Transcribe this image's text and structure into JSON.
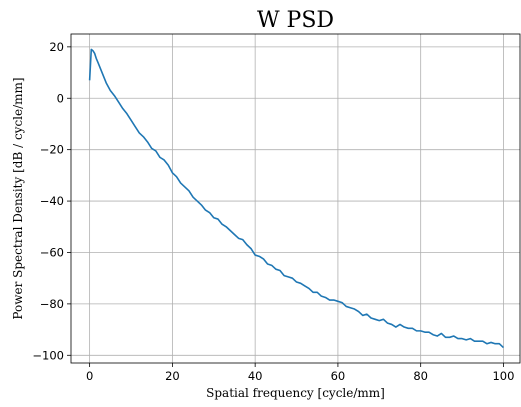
{
  "chart_data": {
    "type": "line",
    "title": "W PSD",
    "xlabel": "Spatial frequency [cycle/mm]",
    "ylabel": "Power Spectral Density [dB / cycle/mm]",
    "xlim": [
      -4.5,
      104
    ],
    "ylim": [
      -103,
      25
    ],
    "xticks": [
      0,
      20,
      40,
      60,
      80,
      100
    ],
    "yticks": [
      20,
      0,
      -20,
      -40,
      -60,
      -80,
      -100
    ],
    "xtick_labels": [
      "0",
      "20",
      "40",
      "60",
      "80",
      "100"
    ],
    "ytick_labels": [
      "20",
      "0",
      "−20",
      "−40",
      "−60",
      "−80",
      "−100"
    ],
    "grid": true,
    "series": [
      {
        "color": "#1f77b4",
        "x": [
          0,
          0.4,
          0.8,
          1.2,
          1.6,
          2.0,
          2.5,
          3,
          3.5,
          4,
          5,
          6,
          7,
          8,
          9,
          10,
          11,
          12,
          13,
          14,
          15,
          16,
          17,
          18,
          19,
          20,
          21,
          22,
          23,
          24,
          25,
          26,
          27,
          28,
          29,
          30,
          31,
          32,
          33,
          34,
          35,
          36,
          37,
          38,
          39,
          40,
          41,
          42,
          43,
          44,
          45,
          46,
          47,
          48,
          49,
          50,
          51,
          52,
          53,
          54,
          55,
          56,
          57,
          58,
          59,
          60,
          61,
          62,
          63,
          64,
          65,
          66,
          67,
          68,
          69,
          70,
          71,
          72,
          73,
          74,
          75,
          76,
          77,
          78,
          79,
          80,
          81,
          82,
          83,
          84,
          85,
          86,
          87,
          88,
          89,
          90,
          91,
          92,
          93,
          94,
          95,
          96,
          97,
          98,
          99,
          100
        ],
        "y": [
          7,
          19,
          18.5,
          17.5,
          15.5,
          14,
          12,
          10,
          8,
          6,
          3,
          1,
          -1.5,
          -4,
          -6,
          -8.5,
          -11,
          -13.5,
          -15,
          -17,
          -19.5,
          -20.5,
          -23,
          -24,
          -26,
          -29,
          -30.5,
          -33,
          -34.5,
          -36,
          -38.5,
          -40,
          -41.5,
          -43.5,
          -44.5,
          -46.5,
          -47,
          -49,
          -50,
          -51.5,
          -53,
          -54.5,
          -55,
          -57,
          -58.5,
          -61,
          -61.5,
          -62.5,
          -64.5,
          -65,
          -66.5,
          -67,
          -69,
          -69.5,
          -70,
          -71.5,
          -72,
          -73,
          -74,
          -75.5,
          -75.5,
          -77,
          -77.5,
          -78.5,
          -78.5,
          -79,
          -79.5,
          -81,
          -81.5,
          -82,
          -83,
          -84.5,
          -84,
          -85.5,
          -86,
          -86.5,
          -86,
          -87.5,
          -88,
          -89,
          -88,
          -89,
          -89.5,
          -89.5,
          -90.5,
          -90.5,
          -91,
          -91,
          -92,
          -92.5,
          -91.5,
          -93,
          -93,
          -92.5,
          -93.5,
          -93.5,
          -94,
          -93.5,
          -94.5,
          -94.5,
          -94.5,
          -95.5,
          -95,
          -95.5,
          -95.5,
          -97
        ]
      }
    ]
  }
}
